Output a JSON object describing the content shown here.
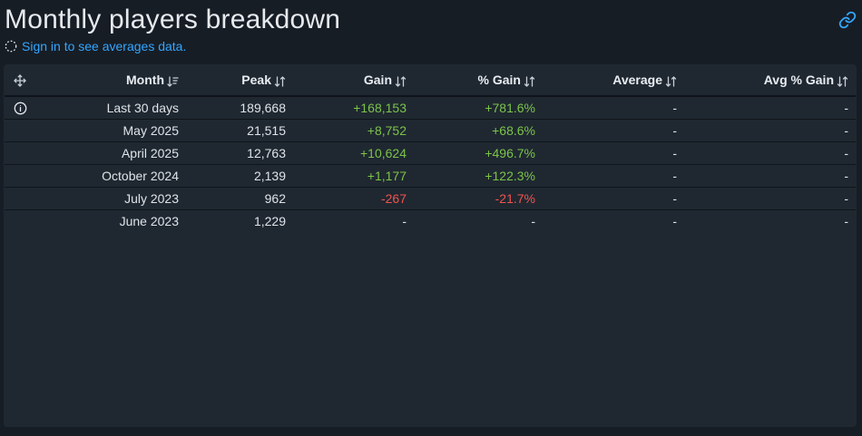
{
  "header": {
    "title": "Monthly players breakdown",
    "signin_text": "Sign in to see averages data."
  },
  "table": {
    "columns": {
      "month": "Month",
      "peak": "Peak",
      "gain": "Gain",
      "pgain": "% Gain",
      "avg": "Average",
      "apgain": "Avg % Gain"
    },
    "rows": [
      {
        "month": "Last 30 days",
        "peak": "189,668",
        "gain": "+168,153",
        "pgain": "+781.6%",
        "avg": "-",
        "apgain": "-"
      },
      {
        "month": "May 2025",
        "peak": "21,515",
        "gain": "+8,752",
        "pgain": "+68.6%",
        "avg": "-",
        "apgain": "-"
      },
      {
        "month": "April 2025",
        "peak": "12,763",
        "gain": "+10,624",
        "pgain": "+496.7%",
        "avg": "-",
        "apgain": "-"
      },
      {
        "month": "October 2024",
        "peak": "2,139",
        "gain": "+1,177",
        "pgain": "+122.3%",
        "avg": "-",
        "apgain": "-"
      },
      {
        "month": "July 2023",
        "peak": "962",
        "gain": "-267",
        "pgain": "-21.7%",
        "avg": "-",
        "apgain": "-"
      },
      {
        "month": "June 2023",
        "peak": "1,229",
        "gain": "-",
        "pgain": "-",
        "avg": "-",
        "apgain": "-"
      }
    ]
  },
  "colors": {
    "background": "#171d25",
    "card": "#1f2831",
    "link": "#33a6ff",
    "positive": "#7cc449",
    "negative": "#f0544f"
  },
  "icons": {
    "move": "move-arrows-icon",
    "info": "info-icon",
    "link": "link-icon",
    "spinner": "spinner-icon",
    "sort_desc": "sort-descending-icon",
    "sort_both": "sort-both-icon"
  }
}
